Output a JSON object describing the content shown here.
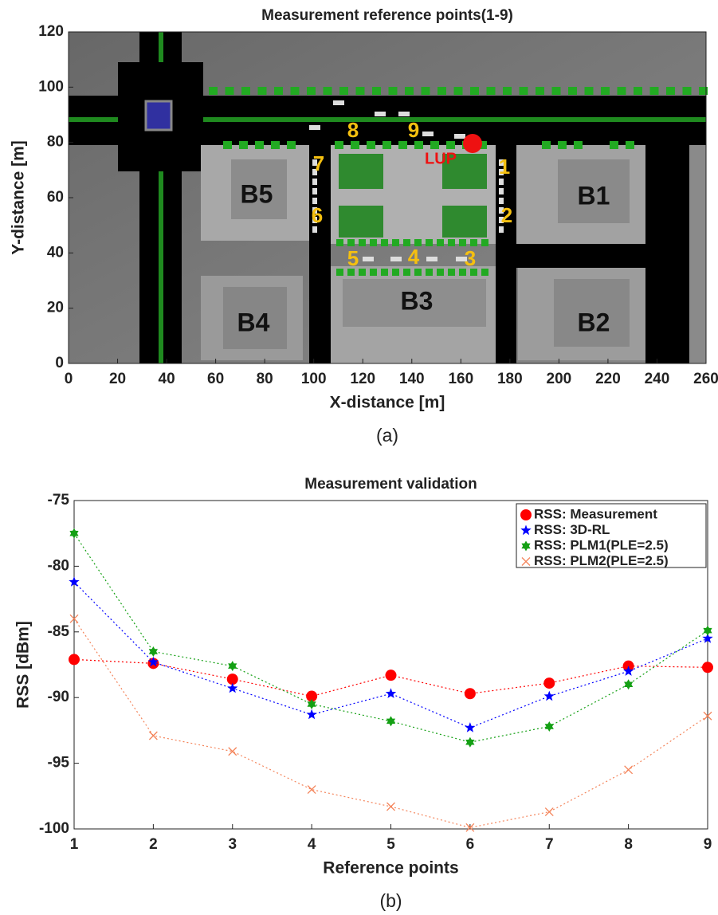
{
  "chart_data": [
    {
      "type": "map",
      "title": "Measurement reference points(1-9)",
      "x_label": "X-distance [m]",
      "y_label": "Y-distance [m]",
      "caption": "(a)",
      "xlim": [
        0,
        260
      ],
      "ylim": [
        0,
        120
      ],
      "xticks": [
        0,
        20,
        40,
        60,
        80,
        100,
        120,
        140,
        160,
        180,
        200,
        220,
        240,
        260
      ],
      "yticks": [
        0,
        20,
        40,
        60,
        80,
        100,
        120
      ],
      "point_labels": [
        "1",
        "2",
        "3",
        "4",
        "5",
        "6",
        "7",
        "8",
        "9"
      ],
      "building_labels": [
        "B1",
        "B2",
        "B3",
        "B4",
        "B5"
      ],
      "transmitter_label": "LUP",
      "transmitter_color": "#ee1111"
    },
    {
      "type": "line",
      "title": "Measurement validation",
      "x_label": "Reference points",
      "y_label": "RSS [dBm]",
      "caption": "(b)",
      "x": [
        1,
        2,
        3,
        4,
        5,
        6,
        7,
        8,
        9
      ],
      "xlim": [
        1,
        9
      ],
      "ylim": [
        -100,
        -75
      ],
      "xticks": [
        1,
        2,
        3,
        4,
        5,
        6,
        7,
        8,
        9
      ],
      "yticks": [
        -100,
        -95,
        -90,
        -85,
        -80,
        -75
      ],
      "legend": "upper right",
      "series": [
        {
          "name": "RSS: Measurement",
          "color": "#ff0000",
          "marker": "circle",
          "values": [
            -87.1,
            -87.4,
            -88.6,
            -89.9,
            -88.3,
            -89.7,
            -88.9,
            -87.6,
            -87.7
          ]
        },
        {
          "name": "RSS: 3D-RL",
          "color": "#0000ff",
          "marker": "star",
          "values": [
            -81.2,
            -87.3,
            -89.3,
            -91.3,
            -89.7,
            -92.3,
            -89.9,
            -88.0,
            -85.5
          ]
        },
        {
          "name": "RSS: PLM1(PLE=2.5)",
          "color": "#14a014",
          "marker": "hexagram",
          "values": [
            -77.5,
            -86.5,
            -87.6,
            -90.5,
            -91.8,
            -93.4,
            -92.2,
            -89.0,
            -84.9
          ]
        },
        {
          "name": "RSS: PLM2(PLE=2.5)",
          "color": "#f4845a",
          "marker": "x",
          "values": [
            -84.0,
            -92.9,
            -94.1,
            -97.0,
            -98.3,
            -99.9,
            -98.7,
            -95.5,
            -91.4
          ]
        }
      ]
    }
  ]
}
